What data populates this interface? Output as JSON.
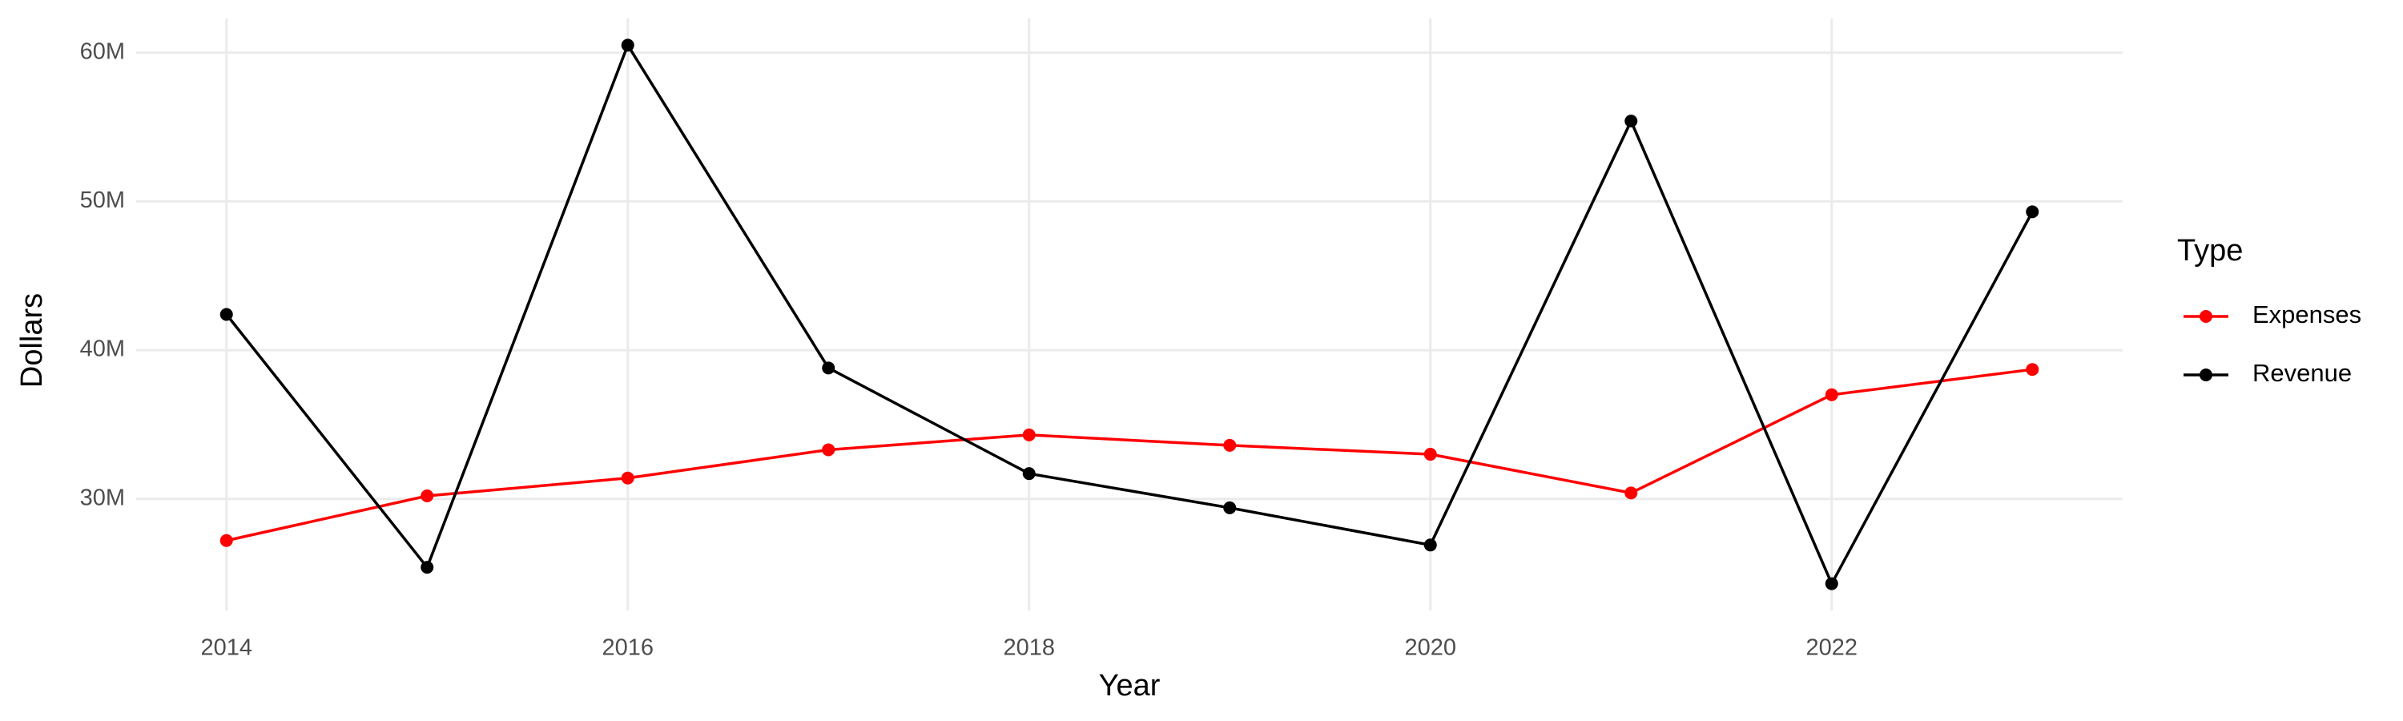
{
  "chart_data": {
    "type": "line",
    "x_label": "Year",
    "y_label": "Dollars",
    "legend_title": "Type",
    "x": [
      2014,
      2015,
      2016,
      2017,
      2018,
      2019,
      2020,
      2021,
      2022,
      2023
    ],
    "series": [
      {
        "name": "Expenses",
        "color": "#ff0000",
        "values": [
          27200000,
          30200000,
          31400000,
          33300000,
          34300000,
          33600000,
          33000000,
          30400000,
          37000000,
          38700000
        ]
      },
      {
        "name": "Revenue",
        "color": "#000000",
        "values": [
          42400000,
          25400000,
          60500000,
          38800000,
          31700000,
          29400000,
          26900000,
          55400000,
          24300000,
          49300000
        ]
      }
    ],
    "xlim": [
      2013.55,
      2023.45
    ],
    "xticks": [
      2014,
      2016,
      2018,
      2020,
      2022
    ],
    "ylim": [
      22500000,
      62300000
    ],
    "yticks": [
      {
        "value": 30000000,
        "label": "30M"
      },
      {
        "value": 40000000,
        "label": "40M"
      },
      {
        "value": 50000000,
        "label": "50M"
      },
      {
        "value": 60000000,
        "label": "60M"
      }
    ],
    "grid": true,
    "legend": "right"
  }
}
